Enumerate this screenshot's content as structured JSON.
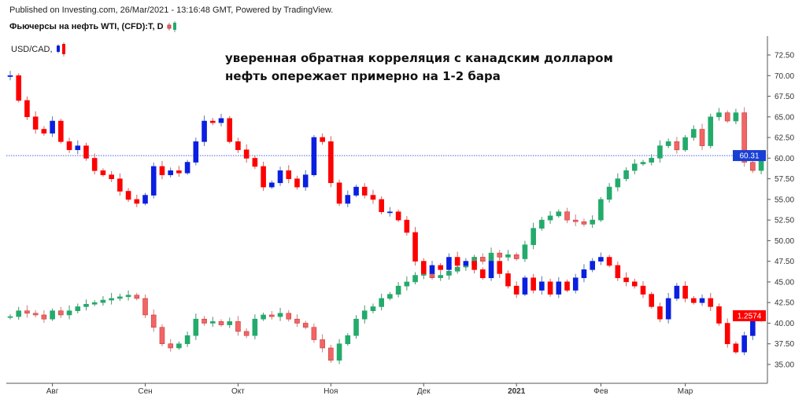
{
  "header": {
    "published": "Published on Investing.com, 26/Mar/2021 - 13:16:48 GMT, Powered by TradingView.",
    "main_symbol": "Фьючерсы на нефть WTI, (CFD):T, D",
    "overlay_symbol": "USD/CAD,"
  },
  "annotation": {
    "line1": "уверенная обратная корреляция с канадским долларом",
    "line2": "нефть опережает примерно на 1-2 бара"
  },
  "chart_data": {
    "type": "candlestick",
    "y_axis": {
      "side": "right",
      "ylim": [
        33.5,
        74.5
      ],
      "ticks": [
        "35.00",
        "37.50",
        "40.00",
        "42.50",
        "45.00",
        "47.50",
        "50.00",
        "52.50",
        "55.00",
        "57.50",
        "60.00",
        "62.50",
        "65.00",
        "67.50",
        "70.00",
        "72.50"
      ]
    },
    "x_axis": {
      "ticks": [
        "Авг",
        "Сен",
        "Окт",
        "Ноя",
        "Дек",
        "2021",
        "Фев",
        "Мар"
      ],
      "tick_bars": [
        5,
        16,
        27,
        38,
        49,
        60,
        70,
        80
      ]
    },
    "grid": false,
    "series": [
      {
        "name": "Фьючерсы на нефть WTI",
        "last_price": "60.31",
        "colors": {
          "up": "#22ab6b",
          "down": "#f26565",
          "down_border": "#c83a3a",
          "price_label": "#1a3fd4"
        },
        "close": [
          40.8,
          41.5,
          41.2,
          41.0,
          40.5,
          41.5,
          41.0,
          41.5,
          42.0,
          42.3,
          42.5,
          42.8,
          43.0,
          43.2,
          43.4,
          43.0,
          41.0,
          39.5,
          37.5,
          37.0,
          37.5,
          38.5,
          40.5,
          40.0,
          40.2,
          39.8,
          40.2,
          39.0,
          38.5,
          40.5,
          41.0,
          40.8,
          41.2,
          40.5,
          40.0,
          39.5,
          38.0,
          37.0,
          35.5,
          37.5,
          38.5,
          40.5,
          41.5,
          42.0,
          43.0,
          43.5,
          44.5,
          45.0,
          45.8,
          46.0,
          45.5,
          45.8,
          46.3,
          46.8,
          47.0,
          48.0,
          47.5,
          48.5,
          48.0,
          48.3,
          47.8,
          49.5,
          51.5,
          52.5,
          53.0,
          53.5,
          52.5,
          52.3,
          52.0,
          52.5,
          55.0,
          56.5,
          57.5,
          58.5,
          59.3,
          59.5,
          60.0,
          61.5,
          62.0,
          61.0,
          62.5,
          63.5,
          61.5,
          65.0,
          65.5,
          64.5,
          65.5,
          59.5,
          58.5,
          60.31
        ]
      },
      {
        "name": "USD/CAD",
        "last_price": "1.2574",
        "colors": {
          "up": "#0a1fe0",
          "down": "#ff0000",
          "price_label": "#ff0000"
        },
        "close": [
          1.36,
          1.3494,
          1.3424,
          1.3371,
          1.3354,
          1.3406,
          1.3318,
          1.3283,
          1.33,
          1.3247,
          1.3194,
          1.3176,
          1.3159,
          1.3106,
          1.3071,
          1.3054,
          1.3089,
          1.3212,
          1.3176,
          1.3194,
          1.3184,
          1.323,
          1.3318,
          1.3406,
          1.3399,
          1.3417,
          1.3318,
          1.3283,
          1.3247,
          1.3212,
          1.3124,
          1.3142,
          1.3194,
          1.3159,
          1.3124,
          1.3176,
          1.3336,
          1.3318,
          1.3142,
          1.3054,
          1.3089,
          1.3124,
          1.3089,
          1.3071,
          1.3018,
          1.3018,
          1.2983,
          1.293,
          1.2807,
          1.2754,
          1.2789,
          1.2771,
          1.2824,
          1.2789,
          1.2807,
          1.2771,
          1.2736,
          1.2807,
          1.2754,
          1.2701,
          1.2666,
          1.2736,
          1.2683,
          1.2719,
          1.2666,
          1.2719,
          1.2683,
          1.2736,
          1.2771,
          1.2807,
          1.2824,
          1.2789,
          1.2736,
          1.2719,
          1.2701,
          1.2666,
          1.2613,
          1.256,
          1.2648,
          1.2701,
          1.2648,
          1.263,
          1.2648,
          1.2613,
          1.2542,
          1.2454,
          1.2419,
          1.2489,
          1.256,
          1.2574
        ]
      }
    ],
    "current_price_line": 60.31
  }
}
